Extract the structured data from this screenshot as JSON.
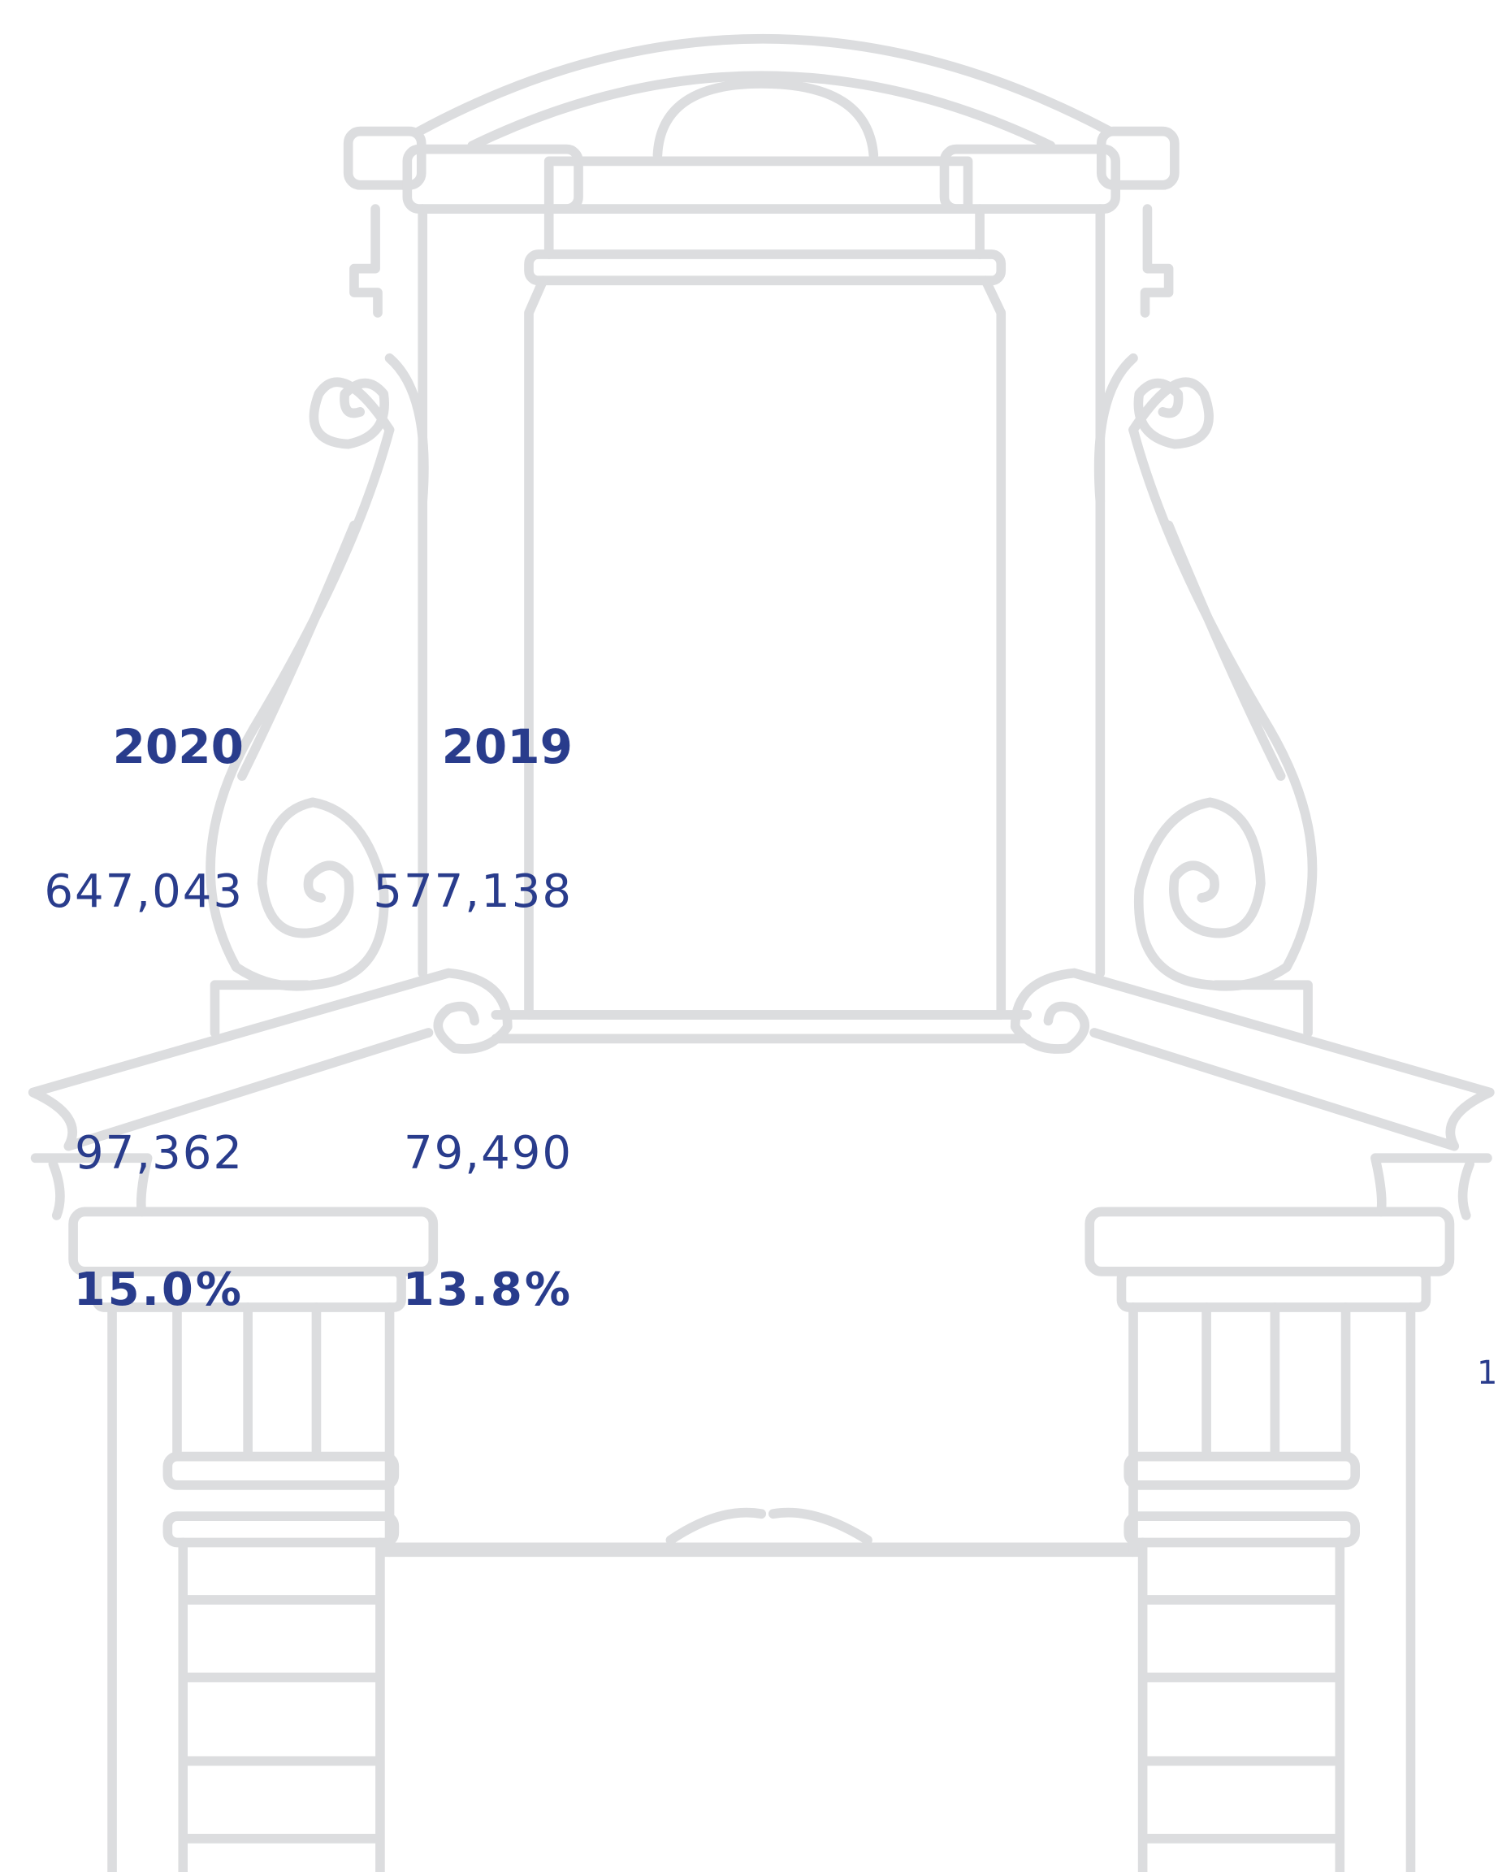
{
  "table": {
    "header": [
      "2020",
      "2019"
    ],
    "rows": [
      [
        "647,043",
        "577,138"
      ],
      [
        "97,362",
        "79,490"
      ],
      [
        "15.0%",
        "13.8%"
      ]
    ]
  },
  "page_number": "1"
}
